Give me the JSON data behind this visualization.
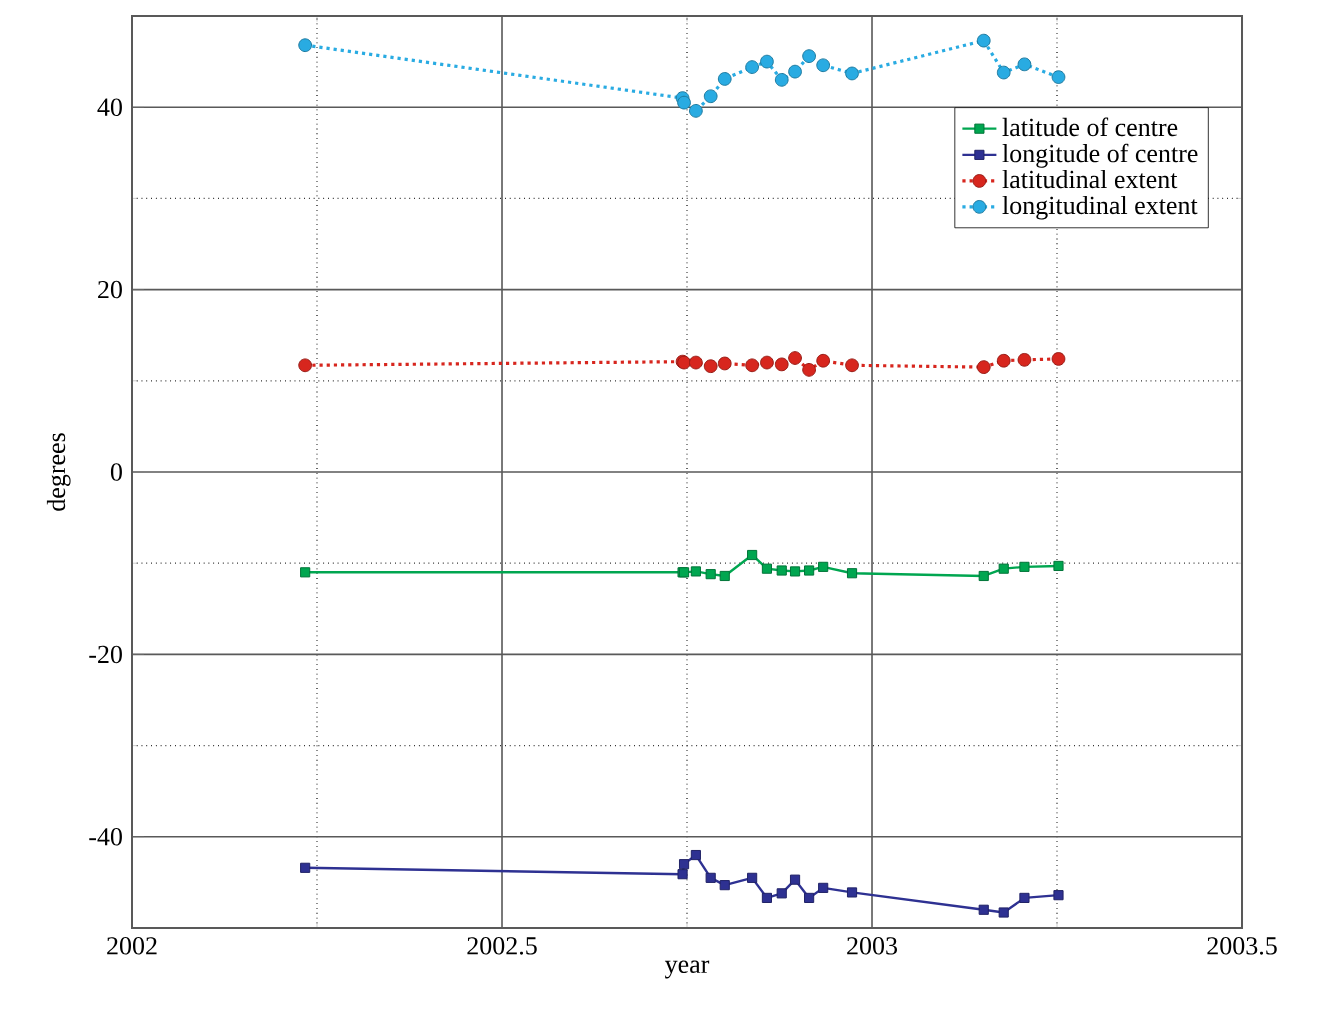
{
  "chart_data": {
    "type": "line",
    "xlabel": "year",
    "ylabel": "degrees",
    "x": [
      2002.234,
      2002.744,
      2002.746,
      2002.762,
      2002.782,
      2002.801,
      2002.838,
      2002.858,
      2002.878,
      2002.896,
      2002.915,
      2002.934,
      2002.973,
      2003.151,
      2003.178,
      2003.206,
      2003.252
    ],
    "series": [
      {
        "name": "latitude of centre",
        "color": "#00a650",
        "marker": "square",
        "line_style": "solid",
        "values": [
          -11.0,
          -11.0,
          -11.0,
          -10.9,
          -11.2,
          -11.4,
          -9.1,
          -10.6,
          -10.8,
          -10.9,
          -10.8,
          -10.4,
          -11.1,
          -11.4,
          -10.6,
          -10.4,
          -10.3
        ]
      },
      {
        "name": "longitude of centre",
        "color": "#2e3192",
        "marker": "square",
        "line_style": "solid",
        "values": [
          -43.4,
          -44.1,
          -43.0,
          -42.0,
          -44.5,
          -45.3,
          -44.5,
          -46.7,
          -46.2,
          -44.7,
          -46.7,
          -45.6,
          -46.1,
          -48.0,
          -48.3,
          -46.7,
          -46.4
        ]
      },
      {
        "name": "latitudinal extent",
        "color": "#d7261e",
        "marker": "circle",
        "line_style": "dotted",
        "values": [
          11.7,
          12.1,
          12.0,
          12.0,
          11.6,
          11.9,
          11.7,
          12.0,
          11.8,
          12.5,
          11.2,
          12.2,
          11.7,
          11.5,
          12.2,
          12.3,
          12.4
        ]
      },
      {
        "name": "longitudinal extent",
        "color": "#29abe2",
        "marker": "circle",
        "line_style": "dotted",
        "values": [
          46.8,
          41.0,
          40.5,
          39.6,
          41.2,
          43.1,
          44.4,
          45.0,
          43.0,
          43.9,
          45.6,
          44.6,
          43.7,
          47.3,
          43.8,
          44.7,
          43.3
        ]
      }
    ],
    "xlim": [
      2002,
      2003.5
    ],
    "xticks": [
      2002,
      2002.5,
      2003,
      2003.5
    ],
    "ylim": [
      -50,
      50
    ],
    "yticks": [
      -40,
      -20,
      0,
      20,
      40
    ],
    "grid": true,
    "legend": "top right"
  }
}
